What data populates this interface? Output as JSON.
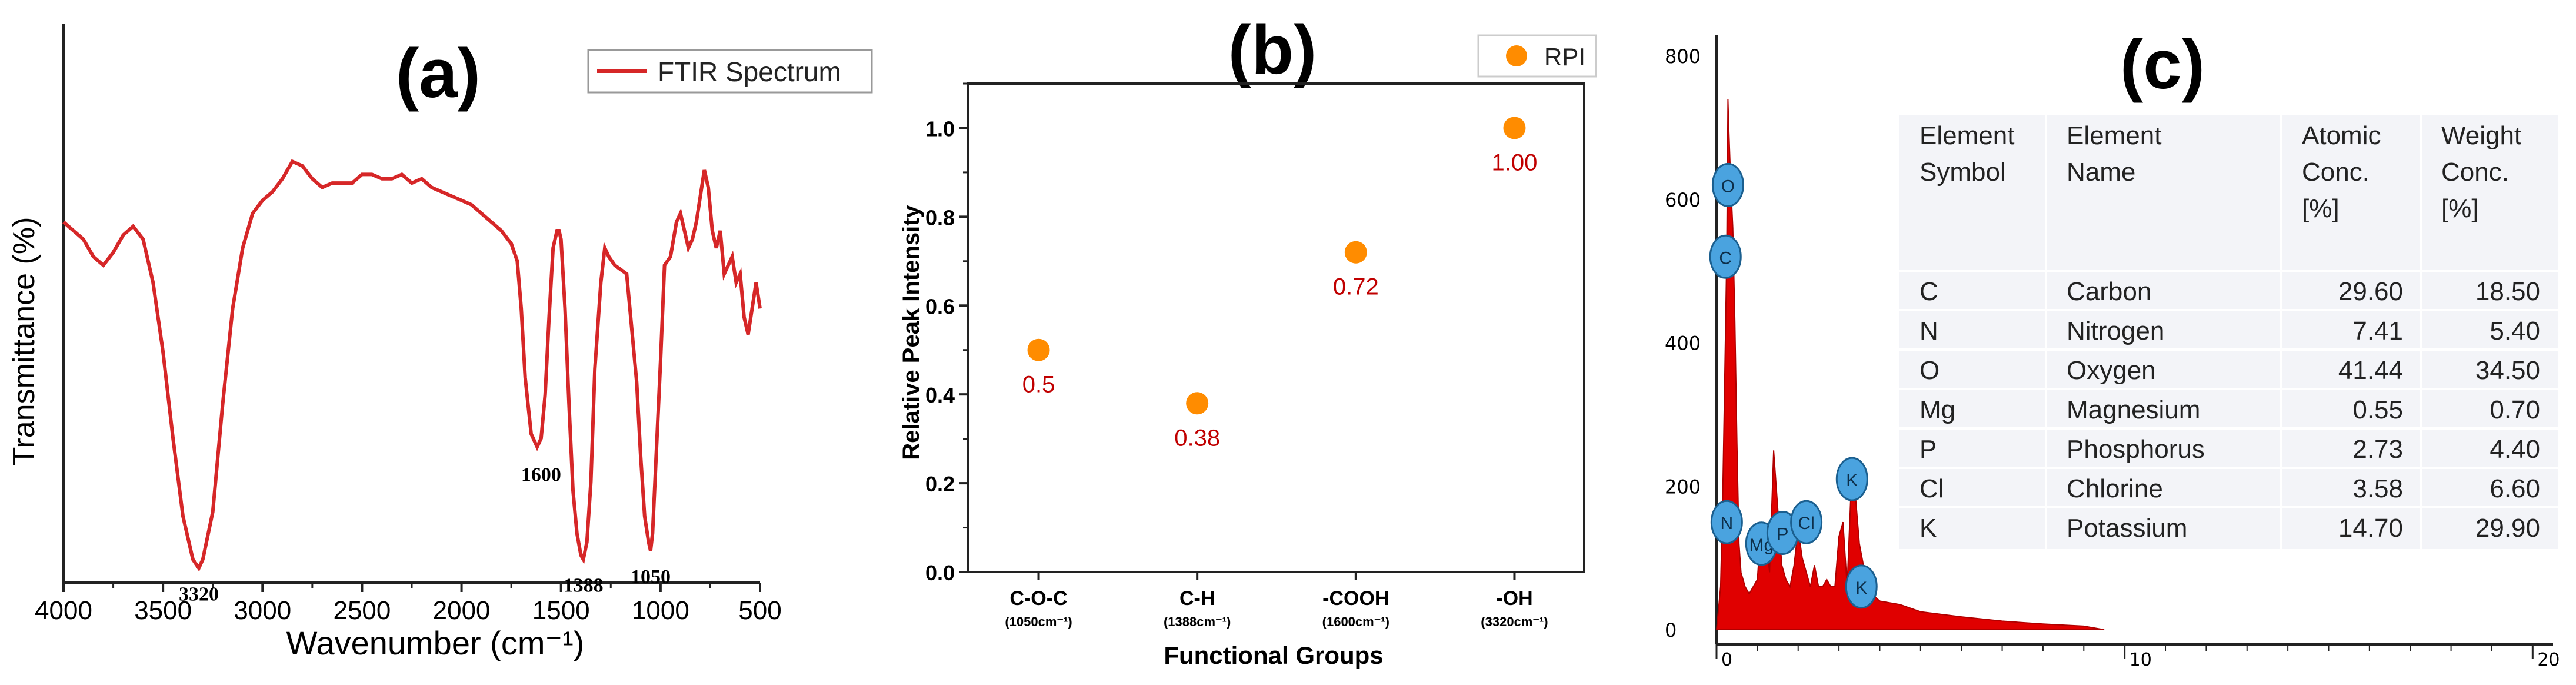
{
  "chart_data": [
    {
      "type": "line",
      "panel_label": "(a)",
      "title": "",
      "xlabel": "Wavenumber (cm⁻¹)",
      "ylabel": "Transmittance (%)",
      "xlim": [
        4000,
        500
      ],
      "x_ticks": [
        "4000",
        "3500",
        "3000",
        "2500",
        "2000",
        "1500",
        "1000",
        "500"
      ],
      "legend": "FTIR Spectrum",
      "legend_position": "top-right",
      "color": "#d62728",
      "series": [
        {
          "name": "FTIR Spectrum",
          "x": [
            4000,
            3900,
            3850,
            3800,
            3750,
            3700,
            3650,
            3600,
            3550,
            3500,
            3450,
            3400,
            3350,
            3320,
            3300,
            3250,
            3200,
            3150,
            3100,
            3050,
            3000,
            2950,
            2900,
            2850,
            2800,
            2750,
            2700,
            2650,
            2600,
            2550,
            2500,
            2450,
            2400,
            2350,
            2300,
            2250,
            2200,
            2150,
            2100,
            2050,
            2000,
            1950,
            1900,
            1850,
            1800,
            1750,
            1720,
            1700,
            1680,
            1650,
            1620,
            1600,
            1580,
            1560,
            1540,
            1520,
            1510,
            1500,
            1480,
            1460,
            1440,
            1420,
            1400,
            1388,
            1370,
            1350,
            1330,
            1300,
            1280,
            1260,
            1230,
            1200,
            1170,
            1150,
            1120,
            1100,
            1080,
            1060,
            1050,
            1040,
            1020,
            1000,
            980,
            950,
            920,
            900,
            880,
            860,
            840,
            820,
            800,
            780,
            760,
            740,
            720,
            700,
            680,
            660,
            640,
            620,
            600,
            580,
            560,
            540,
            520,
            500
          ],
          "y": [
            82,
            78,
            74,
            72,
            75,
            79,
            81,
            78,
            68,
            52,
            32,
            14,
            4,
            2,
            4,
            15,
            40,
            62,
            76,
            84,
            87,
            89,
            92,
            96,
            95,
            92,
            90,
            91,
            91,
            91,
            93,
            93,
            92,
            92,
            93,
            91,
            92,
            90,
            89,
            88,
            87,
            86,
            84,
            82,
            80,
            77,
            73,
            62,
            46,
            33,
            30,
            32,
            42,
            60,
            76,
            80,
            80,
            78,
            62,
            40,
            20,
            10,
            5,
            4,
            8,
            22,
            48,
            68,
            76,
            74,
            72,
            71,
            70,
            60,
            45,
            28,
            14,
            8,
            6,
            10,
            30,
            50,
            72,
            74,
            82,
            84,
            80,
            76,
            78,
            82,
            88,
            94,
            90,
            80,
            76,
            80,
            70,
            72,
            74,
            68,
            70,
            60,
            56,
            62,
            68,
            62
          ]
        }
      ],
      "annotations": [
        {
          "label": "3320",
          "x": 3320,
          "y": 2
        },
        {
          "label": "1600",
          "x": 1600,
          "y": 30
        },
        {
          "label": "1388",
          "x": 1388,
          "y": 4
        },
        {
          "label": "1050",
          "x": 1050,
          "y": 6
        }
      ]
    },
    {
      "type": "scatter",
      "panel_label": "(b)",
      "title": "",
      "xlabel": "Functional Groups",
      "ylabel": "Relative Peak Intensity",
      "ylim": [
        0.0,
        1.1
      ],
      "y_ticks": [
        "0.0",
        "0.2",
        "0.4",
        "0.6",
        "0.8",
        "1.0"
      ],
      "categories": [
        {
          "name": "C-O-C",
          "sub": "(1050cm⁻¹)"
        },
        {
          "name": "C-H",
          "sub": "(1388cm⁻¹)"
        },
        {
          "name": "-COOH",
          "sub": "(1600cm⁻¹)"
        },
        {
          "name": "-OH",
          "sub": "(3320cm⁻¹)"
        }
      ],
      "values": [
        0.5,
        0.38,
        0.72,
        1.0
      ],
      "value_labels": [
        "0.5",
        "0.38",
        "0.72",
        "1.00"
      ],
      "legend": "RPI",
      "legend_position": "top-right",
      "marker_color": "#ff8c00",
      "label_color": "#c00000"
    },
    {
      "type": "bar",
      "panel_label": "(c)",
      "title": "",
      "xlabel": "",
      "ylabel": "",
      "xlim": [
        0,
        20.5
      ],
      "ylim": [
        0,
        820
      ],
      "x_ticks": [
        "0",
        "10",
        "20"
      ],
      "y_ticks": [
        "0",
        "200",
        "400",
        "600",
        "800"
      ],
      "color": "#e00000",
      "spectrum": {
        "x": [
          0.05,
          0.1,
          0.15,
          0.2,
          0.25,
          0.28,
          0.3,
          0.35,
          0.4,
          0.45,
          0.5,
          0.55,
          0.6,
          0.7,
          0.8,
          0.9,
          1.0,
          1.1,
          1.2,
          1.3,
          1.4,
          1.5,
          1.6,
          1.7,
          1.8,
          1.9,
          2.0,
          2.1,
          2.2,
          2.3,
          2.4,
          2.5,
          2.6,
          2.7,
          2.8,
          2.9,
          3.0,
          3.1,
          3.2,
          3.3,
          3.4,
          3.5,
          3.6,
          3.7,
          3.8,
          4.0,
          4.5,
          5.0,
          6.0,
          7.0,
          8.0,
          9.0
        ],
        "counts": [
          30,
          60,
          180,
          350,
          520,
          740,
          700,
          620,
          560,
          430,
          260,
          120,
          80,
          60,
          50,
          60,
          70,
          150,
          130,
          80,
          250,
          170,
          90,
          70,
          60,
          90,
          140,
          100,
          80,
          60,
          90,
          60,
          60,
          70,
          60,
          60,
          130,
          150,
          60,
          200,
          190,
          120,
          90,
          70,
          50,
          40,
          35,
          25,
          18,
          12,
          8,
          5
        ]
      },
      "element_markers": [
        "O",
        "C",
        "N",
        "Mg",
        "P",
        "Cl",
        "K",
        "K"
      ],
      "table": {
        "headers": [
          [
            "Element",
            "Symbol"
          ],
          [
            "Element",
            "Name"
          ],
          [
            "Atomic",
            "Conc.",
            "[%]"
          ],
          [
            "Weight",
            "Conc.",
            "[%]"
          ]
        ],
        "rows": [
          [
            "C",
            "Carbon",
            "29.60",
            "18.50"
          ],
          [
            "N",
            "Nitrogen",
            "7.41",
            "5.40"
          ],
          [
            "O",
            "Oxygen",
            "41.44",
            "34.50"
          ],
          [
            "Mg",
            "Magnesium",
            "0.55",
            "0.70"
          ],
          [
            "P",
            "Phosphorus",
            "2.73",
            "4.40"
          ],
          [
            "Cl",
            "Chlorine",
            "3.58",
            "6.60"
          ],
          [
            "K",
            "Potassium",
            "14.70",
            "29.90"
          ]
        ]
      }
    }
  ]
}
